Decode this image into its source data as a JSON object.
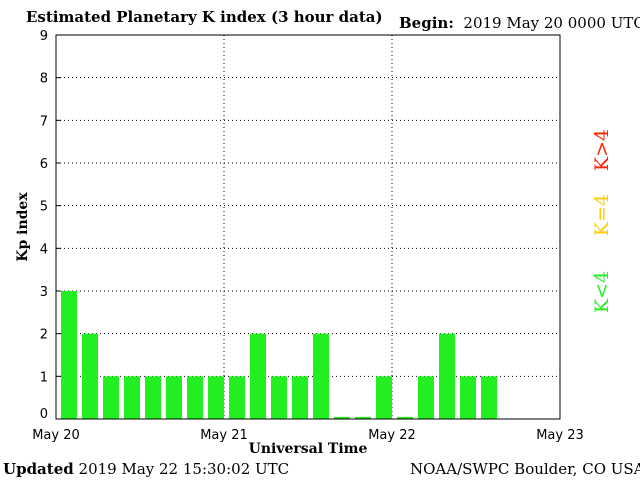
{
  "header": {
    "title": "Estimated Planetary K index (3 hour data)",
    "begin_label": "Begin:",
    "begin_value": "2019 May 20 0000 UTC"
  },
  "footer": {
    "updated_label": "Updated",
    "updated_value": "2019 May 22 15:30:02 UTC",
    "source": "NOAA/SWPC Boulder, CO USA"
  },
  "legend": {
    "low": "K<4",
    "mid": "K=4",
    "high": "K>4"
  },
  "colors": {
    "low": "#22ee22",
    "mid": "#ffcc00",
    "high": "#ff2200",
    "axis": "#000000",
    "grid": "#000000"
  },
  "chart_data": {
    "type": "bar",
    "xlabel": "Universal Time",
    "ylabel": "Kp index",
    "ylim": [
      0,
      9
    ],
    "yticks": [
      "0",
      "1",
      "2",
      "3",
      "4",
      "5",
      "6",
      "7",
      "8",
      "9"
    ],
    "xticks": [
      "May 20",
      "May 21",
      "May 22",
      "May 23"
    ],
    "grid": true,
    "legend_placement": "right",
    "interval_hours": 3,
    "values": [
      3,
      2,
      1,
      1,
      1,
      1,
      1,
      1,
      1,
      2,
      1,
      1,
      2,
      0.05,
      0.05,
      1,
      0.05,
      1,
      2,
      1,
      1
    ]
  }
}
